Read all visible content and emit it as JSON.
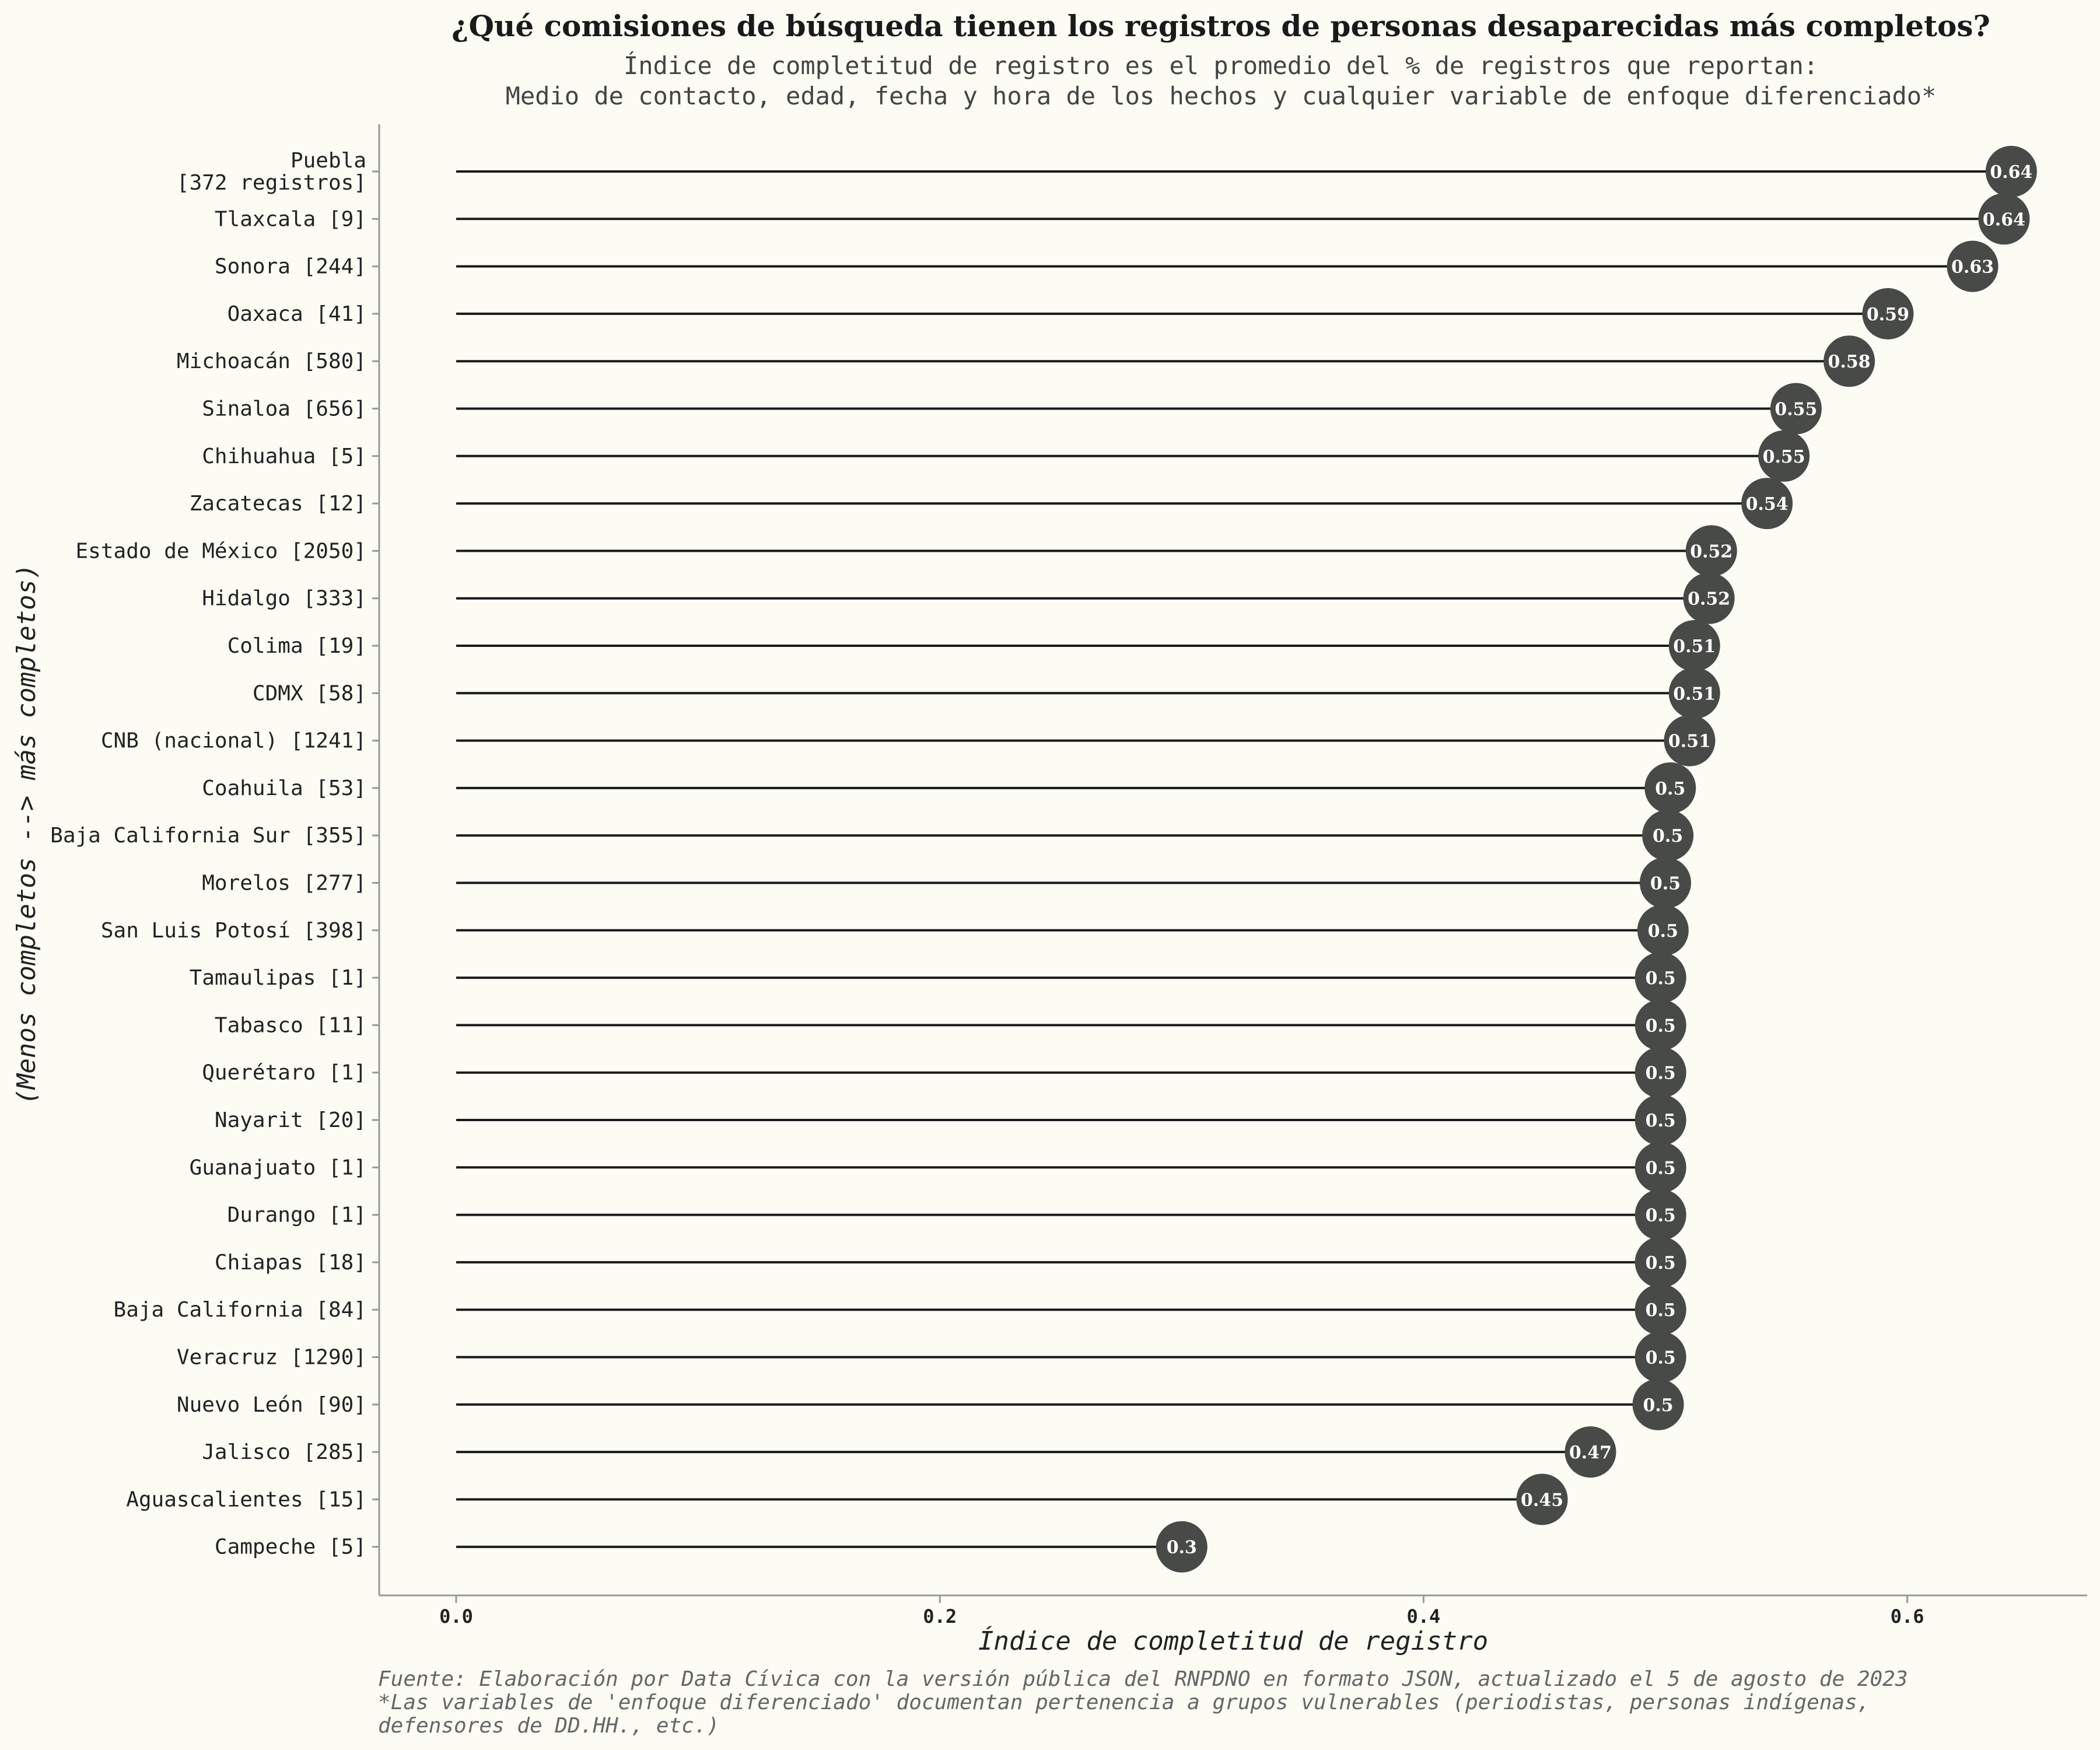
{
  "title": "¿Qué comisiones de búsqueda tienen los registros de personas desaparecidas más completos?",
  "subtitle": [
    "Índice de completitud de registro es el promedio del % de registros que reportan:",
    "Medio de contacto, edad, fecha y hora de los hechos y cualquier variable de enfoque diferenciado*"
  ],
  "caption": [
    "Fuente: Elaboración por Data Cívica con la versión pública del RNPDNO en formato JSON, actualizado el 5 de agosto de 2023",
    "*Las variables de 'enfoque diferenciado' documentan pertenencia a grupos vulnerables (periodistas, personas indígenas,",
    "defensores de DD.HH., etc.)"
  ],
  "colors": {
    "background": "#fcfcf5",
    "dot": "#474a46",
    "line": "#1a1a1a",
    "axis": "#999999"
  },
  "chart_data": {
    "type": "lollipop",
    "xlabel": "Índice de completitud de registro",
    "ylabel": "(Menos completos --> más completos)",
    "xlim": [
      0,
      0.64
    ],
    "xticks": [
      "0.0",
      "0.2",
      "0.4",
      "0.6"
    ],
    "xtick_values": [
      0,
      0.2,
      0.4,
      0.6
    ],
    "grid": false,
    "categories": [
      [
        "Puebla",
        "[372 registros]"
      ],
      [
        "Tlaxcala [9]"
      ],
      [
        "Sonora [244]"
      ],
      [
        "Oaxaca [41]"
      ],
      [
        "Michoacán [580]"
      ],
      [
        "Sinaloa [656]"
      ],
      [
        "Chihuahua [5]"
      ],
      [
        "Zacatecas [12]"
      ],
      [
        "Estado de México [2050]"
      ],
      [
        "Hidalgo [333]"
      ],
      [
        "Colima [19]"
      ],
      [
        "CDMX [58]"
      ],
      [
        "CNB (nacional) [1241]"
      ],
      [
        "Coahuila [53]"
      ],
      [
        "Baja California Sur [355]"
      ],
      [
        "Morelos [277]"
      ],
      [
        "San Luis Potosí [398]"
      ],
      [
        "Tamaulipas [1]"
      ],
      [
        "Tabasco [11]"
      ],
      [
        "Querétaro [1]"
      ],
      [
        "Nayarit [20]"
      ],
      [
        "Guanajuato [1]"
      ],
      [
        "Durango [1]"
      ],
      [
        "Chiapas [18]"
      ],
      [
        "Baja California [84]"
      ],
      [
        "Veracruz [1290]"
      ],
      [
        "Nuevo León [90]"
      ],
      [
        "Jalisco [285]"
      ],
      [
        "Aguascalientes [15]"
      ],
      [
        "Campeche [5]"
      ]
    ],
    "values": [
      0.643,
      0.64,
      0.627,
      0.592,
      0.576,
      0.554,
      0.549,
      0.542,
      0.519,
      0.518,
      0.512,
      0.512,
      0.51,
      0.502,
      0.501,
      0.5,
      0.499,
      0.498,
      0.498,
      0.498,
      0.498,
      0.498,
      0.498,
      0.498,
      0.498,
      0.498,
      0.497,
      0.469,
      0.449,
      0.3
    ],
    "value_labels": [
      "0.64",
      "0.64",
      "0.63",
      "0.59",
      "0.58",
      "0.55",
      "0.55",
      "0.54",
      "0.52",
      "0.52",
      "0.51",
      "0.51",
      "0.51",
      "0.5",
      "0.5",
      "0.5",
      "0.5",
      "0.5",
      "0.5",
      "0.5",
      "0.5",
      "0.5",
      "0.5",
      "0.5",
      "0.5",
      "0.5",
      "0.5",
      "0.47",
      "0.45",
      "0.3"
    ]
  }
}
